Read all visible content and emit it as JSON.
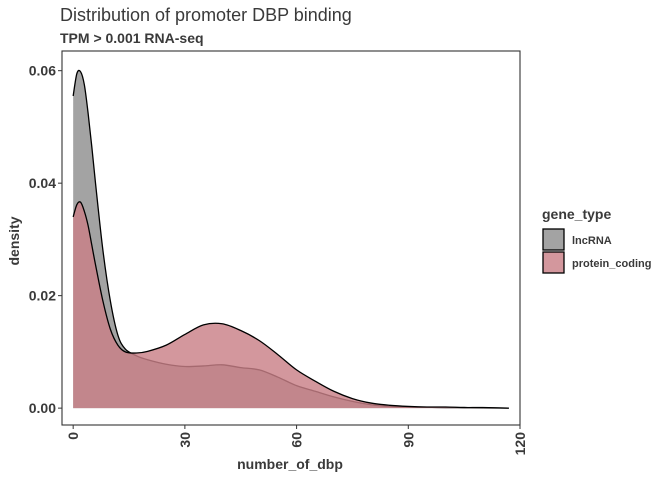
{
  "chart_data": {
    "type": "area",
    "title": "Distribution of promoter DBP binding",
    "subtitle": "TPM > 0.001 RNA-seq",
    "xlabel": "number_of_dbp",
    "ylabel": "density",
    "xlim": [
      -3,
      120
    ],
    "ylim": [
      -0.003,
      0.0635
    ],
    "x_ticks": [
      0,
      30,
      60,
      90,
      120
    ],
    "x_tick_labels": [
      "0",
      "30",
      "60",
      "90",
      "120"
    ],
    "y_ticks": [
      0,
      0.02,
      0.04,
      0.06
    ],
    "y_tick_labels": [
      "0.00",
      "0.02",
      "0.04",
      "0.06"
    ],
    "grid": false,
    "legend": {
      "title": "gene_type",
      "placement": "right"
    },
    "series": [
      {
        "name": "lncRNA",
        "color": "#8f8f8f",
        "x": [
          0,
          1,
          2,
          3,
          4,
          5,
          6,
          8,
          10,
          12,
          14,
          17,
          20,
          25,
          30,
          35,
          40,
          45,
          50,
          55,
          60,
          65,
          70,
          75,
          80,
          85,
          90,
          95,
          100,
          105,
          110,
          117
        ],
        "y": [
          0.0555,
          0.0595,
          0.0598,
          0.0575,
          0.0525,
          0.0465,
          0.04,
          0.028,
          0.019,
          0.013,
          0.0105,
          0.0093,
          0.0086,
          0.0078,
          0.0074,
          0.0075,
          0.0077,
          0.0072,
          0.0068,
          0.0055,
          0.004,
          0.003,
          0.002,
          0.0012,
          0.0006,
          0.0003,
          0.0002,
          0.00015,
          0.0001,
          0.0001,
          5e-05,
          0.0
        ]
      },
      {
        "name": "protein_coding",
        "color": "#c98088",
        "x": [
          0,
          1,
          2,
          3,
          4,
          5,
          6,
          8,
          10,
          12,
          14,
          17,
          20,
          25,
          30,
          35,
          40,
          45,
          50,
          55,
          60,
          65,
          70,
          75,
          80,
          85,
          90,
          95,
          100,
          105,
          110,
          117
        ],
        "y": [
          0.034,
          0.0362,
          0.0366,
          0.035,
          0.0325,
          0.029,
          0.0255,
          0.019,
          0.014,
          0.0112,
          0.01,
          0.0098,
          0.0101,
          0.0112,
          0.0131,
          0.0148,
          0.015,
          0.0138,
          0.012,
          0.0095,
          0.0068,
          0.0048,
          0.003,
          0.0017,
          0.0009,
          0.0005,
          0.0003,
          0.0002,
          0.0002,
          0.0001,
          0.0001,
          0.0
        ]
      }
    ]
  }
}
